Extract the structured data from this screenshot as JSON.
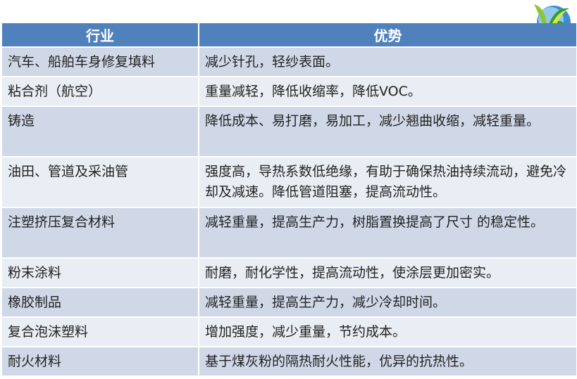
{
  "header": {
    "industry": "行业",
    "advantage": "优势"
  },
  "rows": [
    {
      "industry": "汽车、船舶车身修复填料",
      "advantage": "减少针孔，轻纱表面。"
    },
    {
      "industry": "粘合剂（航空）",
      "advantage": "重量减轻，降低收缩率，降低VOC。"
    },
    {
      "industry": "铸造",
      "advantage": "降低成本、易打磨，易加工，减少翘曲收缩，减轻重量。"
    },
    {
      "industry": "油田、管道及采油管",
      "advantage": "强度高，导热系数低绝缘，有助于确保热油持续流动，避免冷却及减速。降低管道阻塞，提高流动性。"
    },
    {
      "industry": "注塑挤压复合材料",
      "advantage": "减轻重量，提高生产力，树脂置换提高了尺寸 的稳定性。"
    },
    {
      "industry": "粉末涂料",
      "advantage": "耐磨，耐化学性，提高流动性，使涂层更加密实。"
    },
    {
      "industry": "橡胶制品",
      "advantage": "减轻重量，提高生产力，减少冷却时间。"
    },
    {
      "industry": "复合泡沫塑料",
      "advantage": "增加强度，减少重量，节约成本。"
    },
    {
      "industry": "耐火材料",
      "advantage": "基于煤灰粉的隔热耐火性能，优异的抗热性。"
    }
  ],
  "colors": {
    "header": "#4f81bd",
    "row_odd": "#d0d8e8",
    "row_even": "#e9edf4"
  }
}
